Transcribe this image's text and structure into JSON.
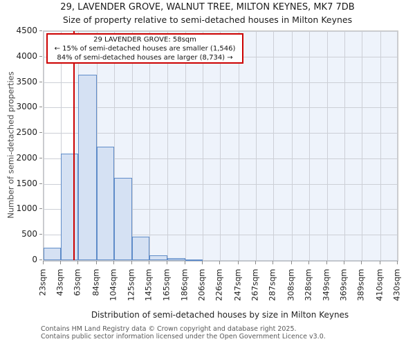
{
  "title": "29, LAVENDER GROVE, WALNUT TREE, MILTON KEYNES, MK7 7DB",
  "subtitle": "Size of property relative to semi-detached houses in Milton Keynes",
  "annotation": {
    "line1": "29 LAVENDER GROVE: 58sqm",
    "line2": "← 15% of semi-detached houses are smaller (1,546)",
    "line3": "84% of semi-detached houses are larger (8,734) →"
  },
  "footer": {
    "line1": "Contains HM Land Registry data © Crown copyright and database right 2025.",
    "line2": "Contains public sector information licensed under the Open Government Licence v3.0."
  },
  "chart_data": {
    "type": "bar",
    "title": "29, LAVENDER GROVE, WALNUT TREE, MILTON KEYNES, MK7 7DB",
    "subtitle": "Size of property relative to semi-detached houses in Milton Keynes",
    "xlabel": "Distribution of semi-detached houses by size in Milton Keynes",
    "ylabel": "Number of semi-detached properties",
    "bin_edges_sqm": [
      23,
      43,
      63,
      84,
      104,
      125,
      145,
      165,
      186,
      206,
      226,
      247,
      267,
      287,
      308,
      328,
      349,
      369,
      389,
      410,
      430
    ],
    "tick_labels": [
      "23sqm",
      "43sqm",
      "63sqm",
      "84sqm",
      "104sqm",
      "125sqm",
      "145sqm",
      "165sqm",
      "186sqm",
      "206sqm",
      "226sqm",
      "247sqm",
      "267sqm",
      "287sqm",
      "308sqm",
      "328sqm",
      "349sqm",
      "369sqm",
      "389sqm",
      "410sqm",
      "430sqm"
    ],
    "values": [
      250,
      2100,
      3640,
      2230,
      1620,
      460,
      90,
      45,
      20,
      0,
      0,
      0,
      0,
      0,
      0,
      0,
      0,
      0,
      0,
      0
    ],
    "ylim": [
      0,
      4500
    ],
    "ytick_step": 500,
    "ytick_labels": [
      "0",
      "500",
      "1000",
      "1500",
      "2000",
      "2500",
      "3000",
      "3500",
      "4000",
      "4500"
    ],
    "marker_value_sqm": 58,
    "grid": true,
    "legend": "none",
    "colors": {
      "bar_fill": "#d5e1f3",
      "bar_edge": "#5e8bc8",
      "marker_line": "#cc0000",
      "annotation_border": "#cc0000",
      "shaded_region": "#eef3fb",
      "gridline": "#cccfd6"
    }
  }
}
